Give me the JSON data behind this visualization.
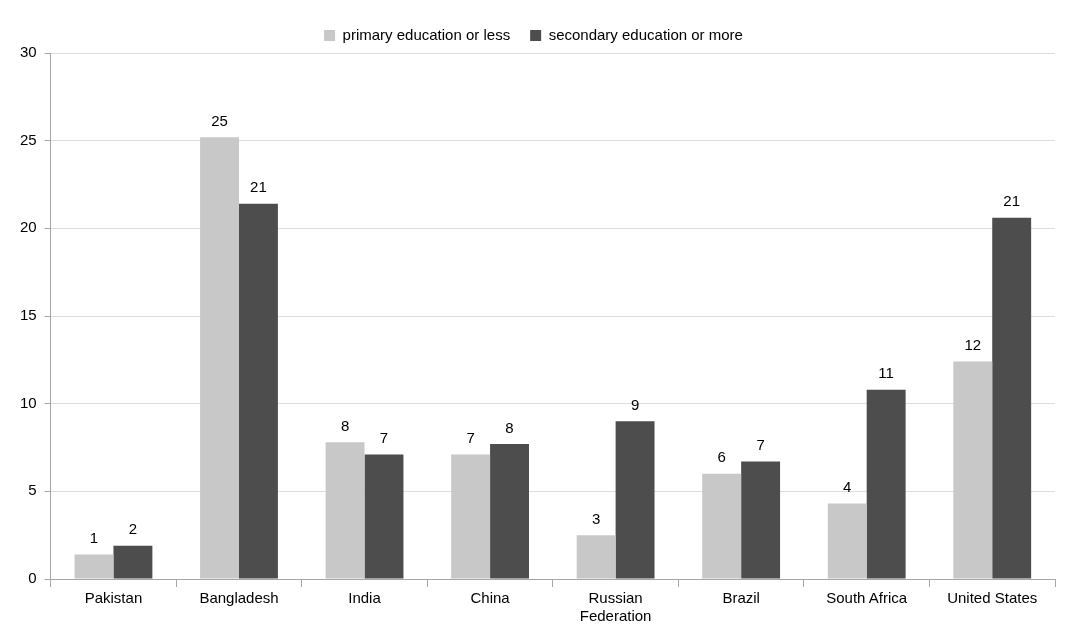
{
  "chart_data": {
    "type": "bar",
    "categories": [
      "Pakistan",
      "Bangladesh",
      "India",
      "China",
      "Russian Federation",
      "Brazil",
      "South Africa",
      "United States"
    ],
    "series": [
      {
        "name": "primary education or less",
        "color": "#c8c8c8",
        "values": [
          1.4,
          25.2,
          7.8,
          7.1,
          2.5,
          6.0,
          4.3,
          12.4
        ],
        "value_labels": [
          "1",
          "25",
          "8",
          "7",
          "3",
          "6",
          "4",
          "12"
        ]
      },
      {
        "name": "secondary education or more",
        "color": "#4d4d4d",
        "values": [
          1.9,
          21.4,
          7.1,
          7.7,
          9.0,
          6.7,
          10.8,
          20.6
        ],
        "value_labels": [
          "2",
          "21",
          "7",
          "8",
          "9",
          "7",
          "11",
          "21"
        ]
      }
    ],
    "ylim": [
      0,
      30
    ],
    "yticks": [
      0,
      5,
      10,
      15,
      20,
      25,
      30
    ],
    "grid": "y",
    "legend": "top"
  }
}
